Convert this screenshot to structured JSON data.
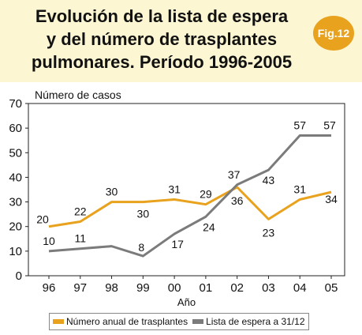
{
  "header": {
    "title_lines": [
      "Evolución de la lista de espera",
      "y del número de trasplantes",
      "pulmonares. Período 1996-2005"
    ],
    "badge": "Fig.12"
  },
  "colors": {
    "yellow": "#e8a21d",
    "gray": "#7b7b7b",
    "badge": "#e8a21d"
  },
  "chart_data": {
    "type": "line",
    "ylabel": "Número de casos",
    "xlabel": "Año",
    "ylim": [
      0,
      70
    ],
    "yticks": [
      0,
      10,
      20,
      30,
      40,
      50,
      60,
      70
    ],
    "categories": [
      "96",
      "97",
      "98",
      "99",
      "00",
      "01",
      "02",
      "03",
      "04",
      "05"
    ],
    "series": [
      {
        "name": "Número anual de trasplantes",
        "color": "#e8a21d",
        "values": [
          20,
          22,
          30,
          30,
          31,
          29,
          36,
          23,
          31,
          34
        ]
      },
      {
        "name": "Lista de espera a 31/12",
        "color": "#7b7b7b",
        "values": [
          10,
          11,
          12,
          8,
          17,
          24,
          37,
          43,
          57,
          57
        ]
      }
    ],
    "data_labels": [
      [
        "20",
        "22",
        "30",
        "30",
        "31",
        "29",
        "36",
        "23",
        "31",
        "34"
      ],
      [
        "10",
        "11",
        "",
        "8",
        "17",
        "24",
        "37",
        "43",
        "57",
        "57"
      ]
    ],
    "grid": false,
    "legend_position": "bottom"
  }
}
